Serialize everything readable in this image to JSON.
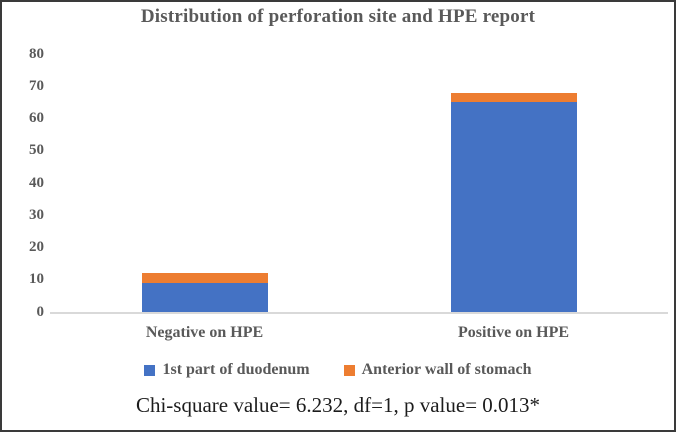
{
  "chart_data": {
    "type": "bar",
    "stacked": true,
    "title": "Distribution of perforation site and HPE report",
    "categories": [
      "Negative on HPE",
      "Positive on HPE"
    ],
    "series": [
      {
        "name": "1st part of duodenum",
        "color": "#4472C4",
        "values": [
          9,
          65
        ]
      },
      {
        "name": "Anterior wall of stomach",
        "color": "#ED7D31",
        "values": [
          3,
          3
        ]
      }
    ],
    "xlabel": "",
    "ylabel": "",
    "ylim": [
      0,
      80
    ],
    "yticks": [
      0,
      10,
      20,
      30,
      40,
      50,
      60,
      70,
      80
    ],
    "grid": false,
    "legend_position": "bottom",
    "annotation": "Chi-square value= 6.232, df=1, p value= 0.013*"
  },
  "colors": {
    "series_blue": "#4472C4",
    "series_orange": "#ED7D31",
    "chart_text": "#595959",
    "axis_line": "#D9D9D9",
    "annotation_text": "#1C1C1C",
    "frame_border": "#3A3A3A"
  }
}
